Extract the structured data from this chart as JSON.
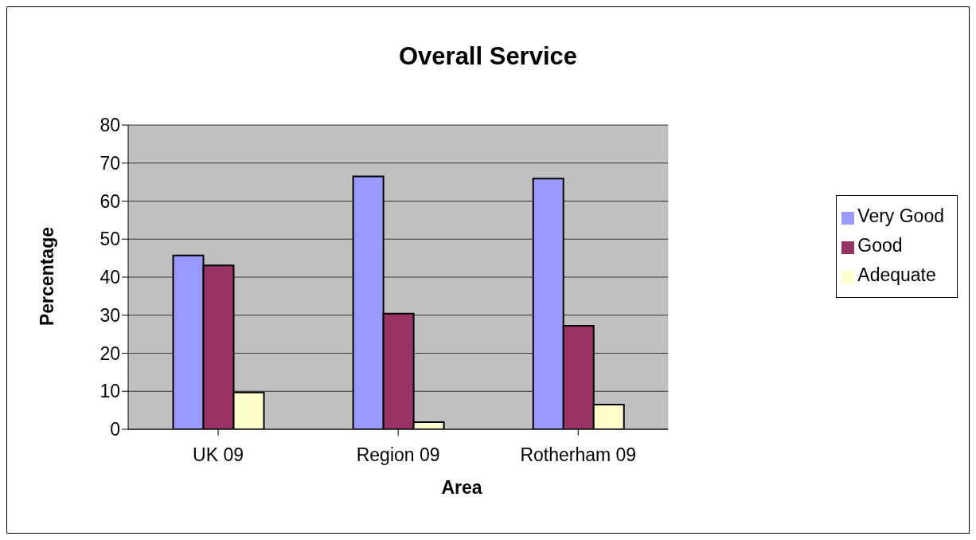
{
  "chart_data": {
    "type": "bar",
    "title": "Overall Service",
    "xlabel": "Area",
    "ylabel": "Percentage",
    "categories": [
      "UK 09",
      "Region 09",
      "Rotherham 09"
    ],
    "series": [
      {
        "name": "Very Good",
        "color": "#9999ff",
        "values": [
          45.7,
          66.5,
          65.9
        ]
      },
      {
        "name": "Good",
        "color": "#993366",
        "values": [
          43.1,
          30.4,
          27.2
        ]
      },
      {
        "name": "Adequate",
        "color": "#ffffcc",
        "values": [
          9.7,
          1.9,
          6.5
        ]
      }
    ],
    "ylim": [
      0,
      80
    ],
    "yticks": [
      0,
      10,
      20,
      30,
      40,
      50,
      60,
      70,
      80
    ],
    "grid": "y",
    "legend": "right"
  }
}
